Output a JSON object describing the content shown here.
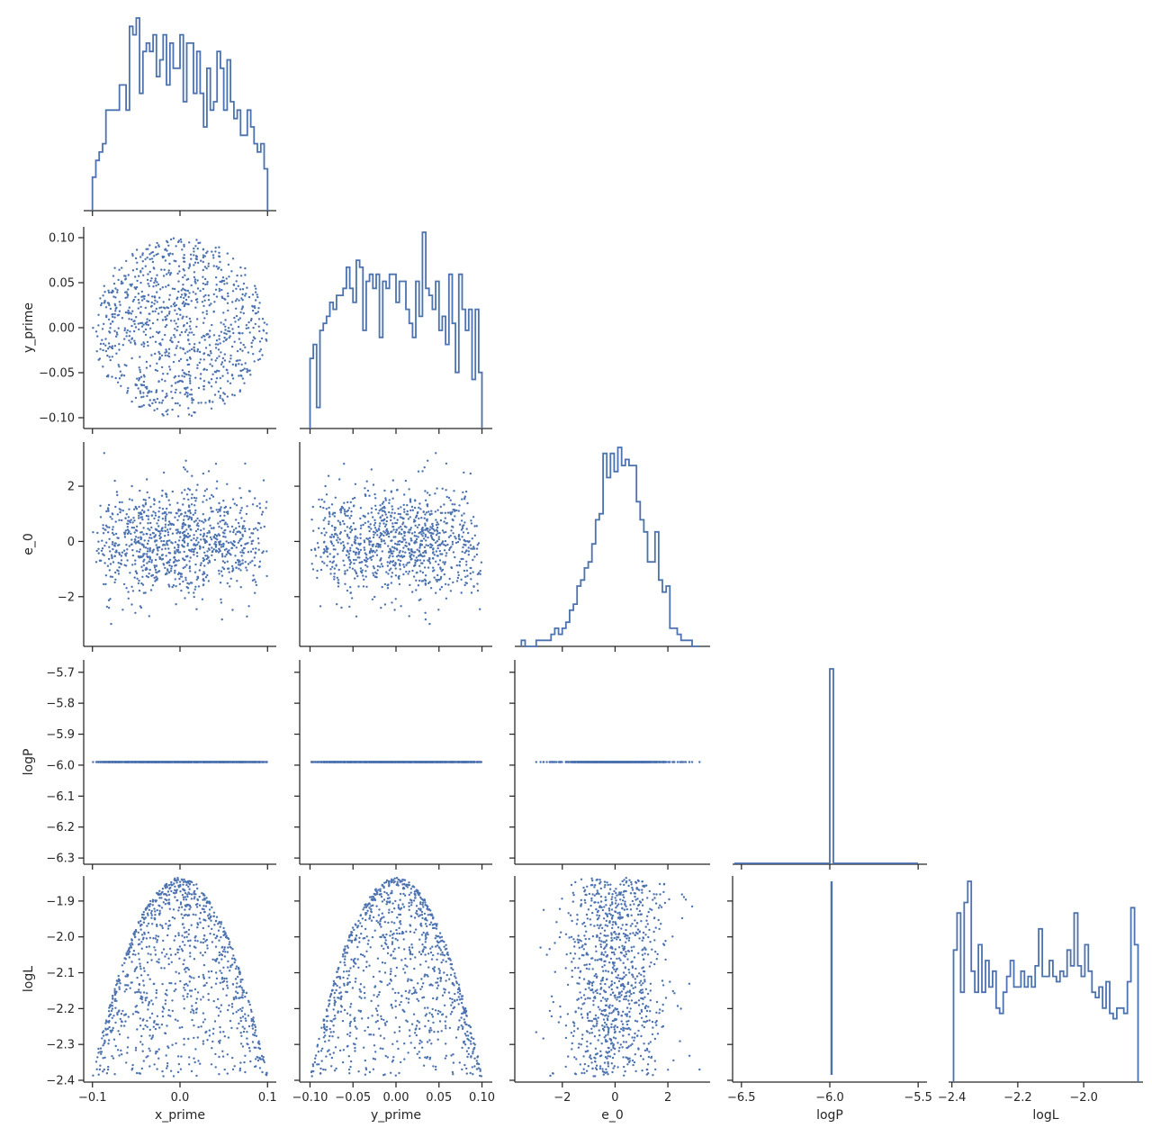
{
  "chart_data": {
    "type": "scatter",
    "variables": [
      "x_prime",
      "y_prime",
      "e_0",
      "logP",
      "logL"
    ],
    "series_color": "#4c72b0",
    "layout": "corner pair plot: histograms on diagonal, scatter plots below diagonal",
    "axes": {
      "x_prime": {
        "label": "x_prime",
        "ticks": [
          -0.1,
          0.0,
          0.1
        ],
        "tick_labels": [
          "−0.1",
          "0.0",
          "0.1"
        ],
        "range": [
          -0.11,
          0.11
        ]
      },
      "y_prime": {
        "label": "y_prime",
        "ticks": [
          -0.1,
          -0.05,
          0.0,
          0.05,
          0.1
        ],
        "tick_labels": [
          "−0.10",
          "−0.05",
          "0.00",
          "0.05",
          "0.10"
        ],
        "range": [
          -0.112,
          0.112
        ]
      },
      "e_0": {
        "label": "e_0",
        "ticks": [
          -2,
          0,
          2
        ],
        "tick_labels": [
          "−2",
          "0",
          "2"
        ],
        "range": [
          -3.8,
          3.6
        ]
      },
      "logP": {
        "label": "logP",
        "ticks": [
          -6.3,
          -6.2,
          -6.1,
          -6.0,
          -5.9,
          -5.8,
          -5.7
        ],
        "tick_labels": [
          "−6.3",
          "−6.2",
          "−6.1",
          "−6.0",
          "−5.9",
          "−5.8",
          "−5.7"
        ],
        "range": [
          -6.32,
          -5.66
        ],
        "x_ticks": [
          -6.5,
          -6.0,
          -5.5
        ],
        "x_tick_labels": [
          "−6.5",
          "−6.0",
          "−5.5"
        ],
        "x_range": [
          -6.55,
          -5.45
        ]
      },
      "logL": {
        "label": "logL",
        "ticks": [
          -2.4,
          -2.3,
          -2.2,
          -2.1,
          -2.0,
          -1.9
        ],
        "tick_labels": [
          "−2.4",
          "−2.3",
          "−2.2",
          "−2.1",
          "−2.0",
          "−1.9"
        ],
        "range": [
          -2.405,
          -1.83
        ],
        "x_ticks": [
          -2.4,
          -2.2,
          -2.0
        ],
        "x_tick_labels": [
          "−2.4",
          "−2.2",
          "−2.0"
        ],
        "x_range": [
          -2.41,
          -1.82
        ]
      }
    },
    "logP_value": -5.99,
    "histograms": {
      "x_prime": {
        "range": [
          -0.1,
          0.1
        ],
        "counts": [
          4,
          6,
          7,
          8,
          12,
          12,
          12,
          12,
          15,
          15,
          12,
          22,
          21,
          23,
          14,
          19,
          20,
          19,
          21,
          16,
          18,
          21,
          15,
          20,
          17,
          17,
          21,
          13,
          20,
          20,
          14,
          19,
          14,
          10,
          17,
          12,
          13,
          19,
          17,
          12,
          18,
          13,
          11,
          12,
          9,
          9,
          12,
          10,
          8,
          7,
          8,
          5
        ]
      },
      "y_prime": {
        "range": [
          -0.1,
          0.1
        ],
        "counts": [
          10,
          12,
          3,
          14,
          15,
          16,
          18,
          17,
          19,
          19,
          20,
          23,
          20,
          18,
          24,
          23,
          14,
          21,
          22,
          20,
          22,
          13,
          21,
          20,
          22,
          22,
          18,
          21,
          21,
          17,
          15,
          13,
          21,
          16,
          28,
          20,
          19,
          17,
          21,
          14,
          16,
          12,
          22,
          15,
          8,
          22,
          17,
          14,
          17,
          7,
          17,
          8
        ]
      },
      "e_0": {
        "range": [
          -3.55,
          3.2
        ],
        "counts": [
          1,
          0,
          0,
          0,
          1,
          1,
          1,
          1,
          2,
          3,
          2,
          3,
          4,
          6,
          7,
          10,
          11,
          13,
          14,
          17,
          21,
          22,
          32,
          28,
          32,
          29,
          33,
          30,
          31,
          30,
          30,
          24,
          21,
          19,
          14,
          14,
          19,
          11,
          9,
          10,
          3,
          3,
          2,
          1,
          1,
          1,
          0,
          0
        ]
      },
      "logL": {
        "range": [
          -2.395,
          -1.835
        ],
        "counts": [
          25,
          32,
          17,
          34,
          38,
          21,
          17,
          26,
          17,
          23,
          18,
          21,
          14,
          13,
          17,
          20,
          23,
          18,
          18,
          21,
          18,
          20,
          18,
          22,
          29,
          20,
          20,
          23,
          20,
          19,
          21,
          20,
          25,
          22,
          32,
          22,
          20,
          26,
          21,
          17,
          16,
          18,
          14,
          19,
          13,
          12,
          14,
          14,
          13,
          19,
          33,
          26
        ]
      }
    },
    "scatter_samples": 1000,
    "relationships": {
      "x_prime_vs_y_prime": "points uniformly fill a disk of radius 0.1",
      "logL_vs_position": "logL ≈ -1.84 - 55·(x_prime² + y_prime²) with small noise",
      "e_0": "approximately standard normal, independent of position",
      "logP": "constant at about -5.99"
    }
  }
}
